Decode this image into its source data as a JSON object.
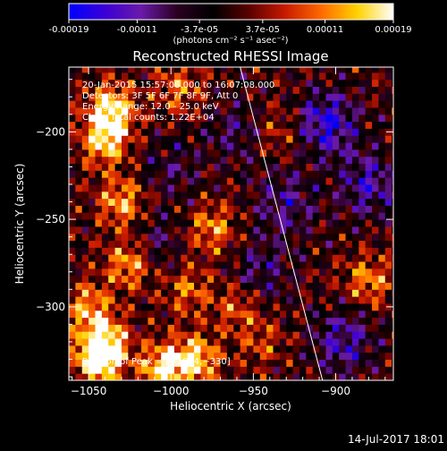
{
  "colorbar": {
    "tick_labels": [
      "-0.00019",
      "-0.00011",
      "-3.7e-05",
      "3.7e-05",
      "0.00011",
      "0.00019"
    ],
    "tick_values": [
      -0.00019,
      -0.00011,
      -3.7e-05,
      3.7e-05,
      0.00011,
      0.00019
    ],
    "range": [
      -0.00019,
      0.00019
    ],
    "unit_label": "(photons cm⁻² s⁻¹ asec⁻²)",
    "colors": [
      "#0000ff",
      "#3b00d6",
      "#6a1aa8",
      "#2a0020",
      "#000000",
      "#5a0000",
      "#c81a00",
      "#ff6a00",
      "#ffd200",
      "#ffffff"
    ]
  },
  "chart_data": {
    "type": "heatmap",
    "title": "Reconstructed RHESSI Image",
    "xlabel": "Heliocentric X (arcsec)",
    "ylabel": "Heliocentric Y (arcsec)",
    "xlim": [
      -1062,
      -865
    ],
    "ylim": [
      -342,
      -163
    ],
    "x_ticks": [
      -1050,
      -1000,
      -950,
      -900
    ],
    "x_tick_labels": [
      "−1050",
      "−1000",
      "−950",
      "−900"
    ],
    "y_ticks": [
      -200,
      -250,
      -300
    ],
    "y_tick_labels": [
      "−200",
      "−250",
      "−300"
    ],
    "grid": false,
    "annotations": [
      "20-Jan-2015 15:57:08.000 to 16:07:08.000",
      "Detectors: 3F 5F 6F 7F 8F 9F, Att 0",
      "Energy Range: 12.0 - 25.0 keV",
      "Clean    Total counts: 1.22E+04"
    ],
    "peak_label": "Position of Peak = [−1044,−330]",
    "peak_position": [
      -1044,
      -330
    ],
    "limb_line": {
      "x_at_top": -958,
      "x_at_bottom": -908
    },
    "bright_regions": [
      {
        "x": -1036,
        "y": -187,
        "level": 0.95
      },
      {
        "x": -1040,
        "y": -205,
        "level": 0.85
      },
      {
        "x": -1030,
        "y": -240,
        "level": 0.7
      },
      {
        "x": -1025,
        "y": -275,
        "level": 0.75
      },
      {
        "x": -1050,
        "y": -300,
        "level": 0.65
      },
      {
        "x": -1040,
        "y": -320,
        "level": 0.8
      },
      {
        "x": -1044,
        "y": -330,
        "level": 1.0
      },
      {
        "x": -1005,
        "y": -335,
        "level": 0.9
      },
      {
        "x": -985,
        "y": -330,
        "level": 0.85
      },
      {
        "x": -975,
        "y": -255,
        "level": 0.6
      },
      {
        "x": -990,
        "y": -290,
        "level": 0.5
      },
      {
        "x": -960,
        "y": -300,
        "level": 0.45
      },
      {
        "x": -995,
        "y": -175,
        "level": 0.5
      },
      {
        "x": -880,
        "y": -285,
        "level": 0.6
      },
      {
        "x": -935,
        "y": -200,
        "level": 0.35
      },
      {
        "x": -945,
        "y": -320,
        "level": 0.35
      }
    ],
    "dim_regions": [
      {
        "x": -905,
        "y": -195,
        "level": 0.8
      },
      {
        "x": -880,
        "y": -230,
        "level": 0.6
      },
      {
        "x": -930,
        "y": -240,
        "level": 0.5
      },
      {
        "x": -945,
        "y": -280,
        "level": 0.4
      },
      {
        "x": -895,
        "y": -320,
        "level": 0.6
      },
      {
        "x": -960,
        "y": -200,
        "level": 0.35
      },
      {
        "x": -1010,
        "y": -265,
        "level": 0.35
      },
      {
        "x": -1000,
        "y": -220,
        "level": 0.3
      }
    ]
  },
  "timestamp": "14-Jul-2017 18:01"
}
